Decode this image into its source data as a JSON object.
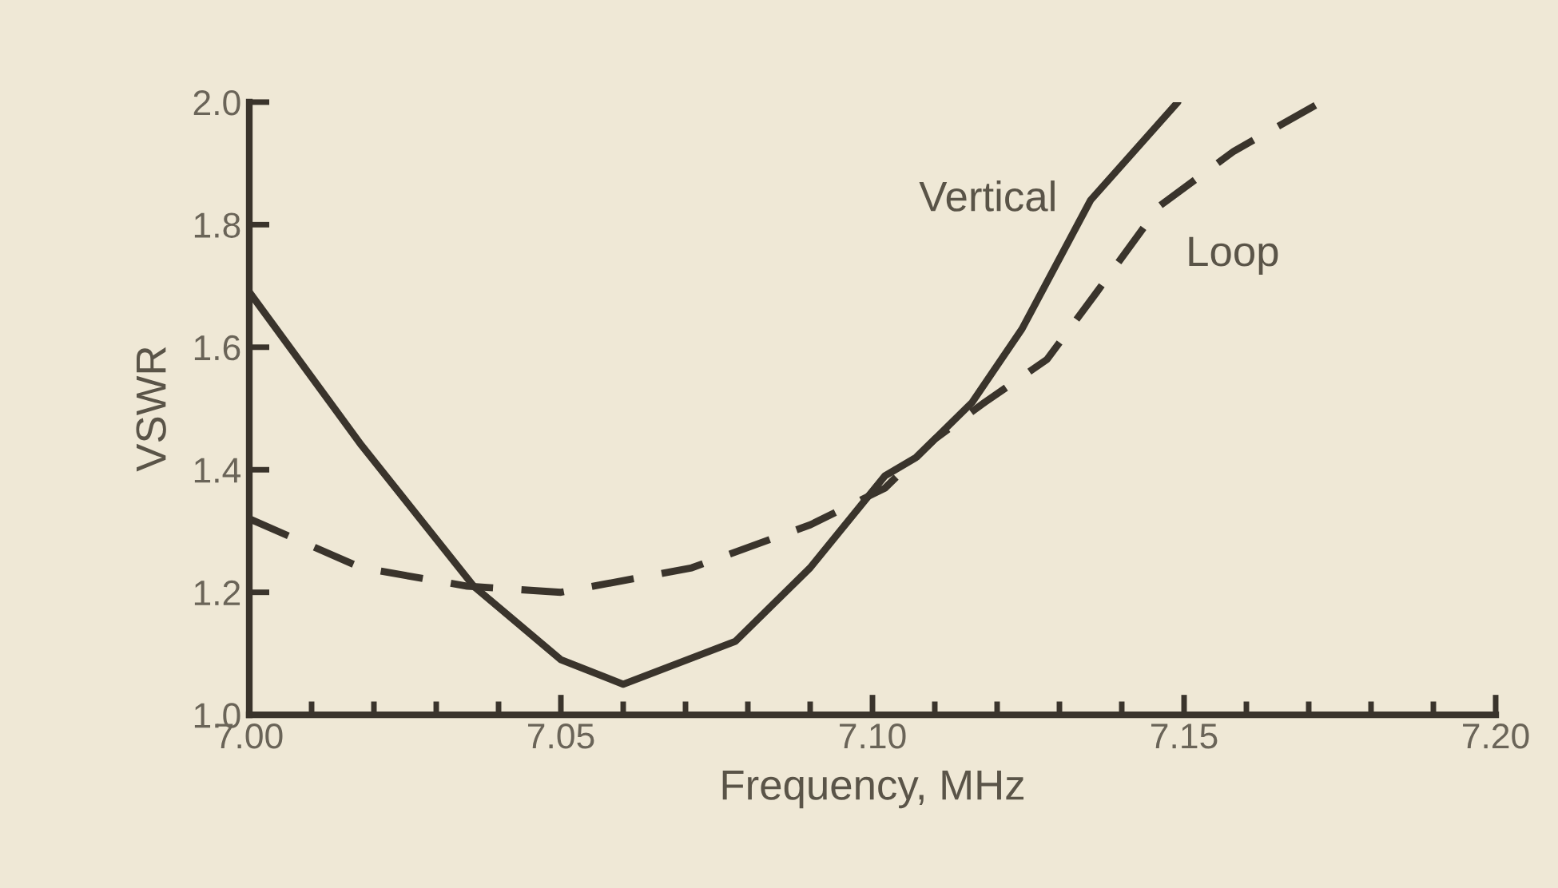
{
  "chart_data": {
    "type": "line",
    "xlabel": "Frequency, MHz",
    "ylabel": "VSWR",
    "xlim": [
      7.0,
      7.2
    ],
    "ylim": [
      1.0,
      2.0
    ],
    "xticks": [
      {
        "value": 7.0,
        "label": "7.00"
      },
      {
        "value": 7.01,
        "label": null
      },
      {
        "value": 7.02,
        "label": null
      },
      {
        "value": 7.03,
        "label": null
      },
      {
        "value": 7.04,
        "label": null
      },
      {
        "value": 7.05,
        "label": "7.05"
      },
      {
        "value": 7.06,
        "label": null
      },
      {
        "value": 7.07,
        "label": null
      },
      {
        "value": 7.08,
        "label": null
      },
      {
        "value": 7.09,
        "label": null
      },
      {
        "value": 7.1,
        "label": "7.10"
      },
      {
        "value": 7.11,
        "label": null
      },
      {
        "value": 7.12,
        "label": null
      },
      {
        "value": 7.13,
        "label": null
      },
      {
        "value": 7.14,
        "label": null
      },
      {
        "value": 7.15,
        "label": "7.15"
      },
      {
        "value": 7.16,
        "label": null
      },
      {
        "value": 7.17,
        "label": null
      },
      {
        "value": 7.18,
        "label": null
      },
      {
        "value": 7.19,
        "label": null
      },
      {
        "value": 7.2,
        "label": "7.20"
      }
    ],
    "yticks": [
      {
        "value": 1.0,
        "label": "1.0"
      },
      {
        "value": 1.2,
        "label": "1.2"
      },
      {
        "value": 1.4,
        "label": "1.4"
      },
      {
        "value": 1.6,
        "label": "1.6"
      },
      {
        "value": 1.8,
        "label": "1.8"
      },
      {
        "value": 2.0,
        "label": "2.0"
      }
    ],
    "grid": false,
    "legend": false,
    "marker": "none",
    "series": [
      {
        "name": "Vertical",
        "color": "#3a342c",
        "line_style": "solid",
        "x": [
          7.0,
          7.018,
          7.036,
          7.05,
          7.06,
          7.078,
          7.09,
          7.102,
          7.107,
          7.116,
          7.124,
          7.135,
          7.149
        ],
        "values": [
          1.69,
          1.44,
          1.21,
          1.09,
          1.05,
          1.12,
          1.24,
          1.39,
          1.42,
          1.51,
          1.63,
          1.84,
          2.0
        ]
      },
      {
        "name": "Loop",
        "color": "#3a342c",
        "line_style": "dashed",
        "x": [
          7.0,
          7.018,
          7.035,
          7.05,
          7.071,
          7.09,
          7.102,
          7.11,
          7.118,
          7.128,
          7.136,
          7.146,
          7.158,
          7.172
        ],
        "values": [
          1.32,
          1.24,
          1.21,
          1.2,
          1.24,
          1.31,
          1.37,
          1.45,
          1.51,
          1.58,
          1.69,
          1.83,
          1.92,
          2.0
        ]
      }
    ]
  }
}
